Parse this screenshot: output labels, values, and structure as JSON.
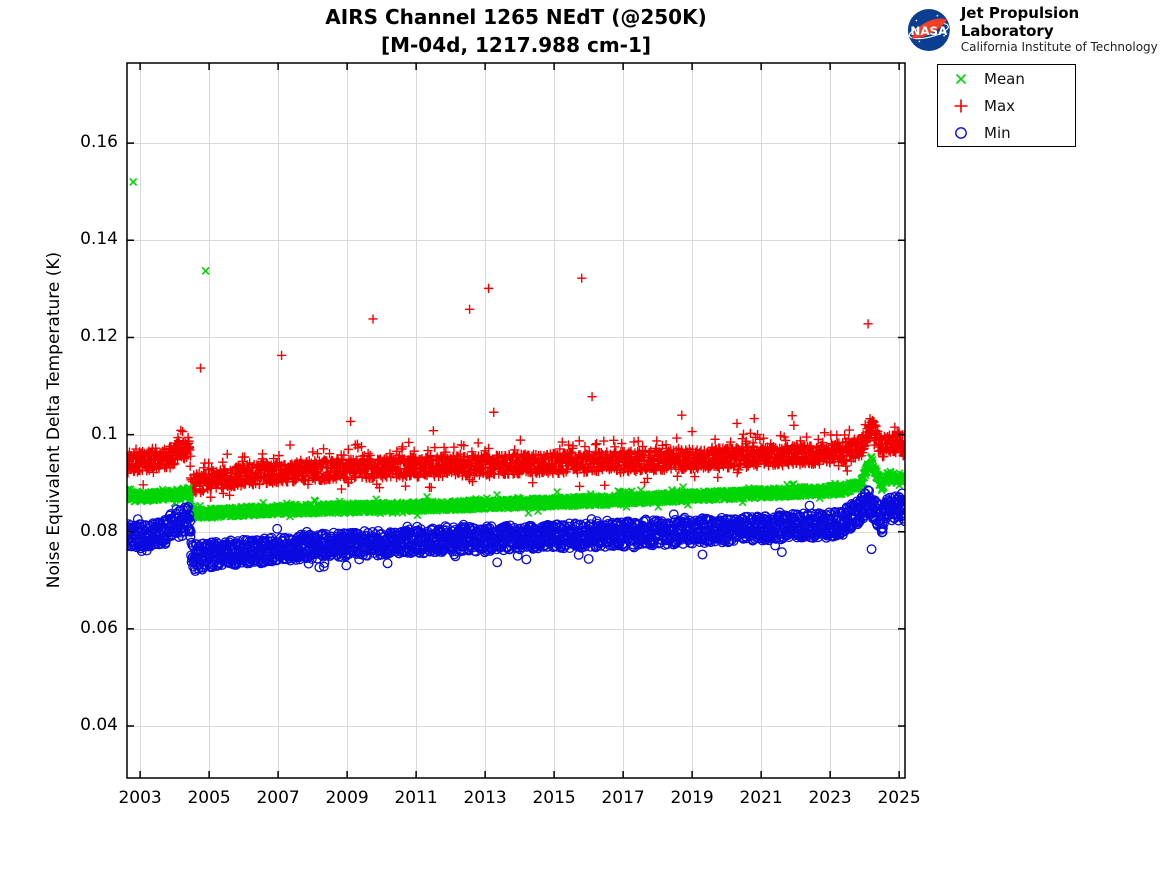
{
  "header": {
    "logo": {
      "nasa_text": "NASA",
      "org_name": "Jet Propulsion Laboratory",
      "org_sub": "California Institute of Technology"
    }
  },
  "legend": {
    "items": [
      {
        "label": "Mean",
        "series": "Mean"
      },
      {
        "label": "Max",
        "series": "Max"
      },
      {
        "label": "Min",
        "series": "Min"
      }
    ]
  },
  "chart_data": {
    "type": "scatter",
    "title": "AIRS Channel 1265 NEdT (@250K)",
    "subtitle": "[M-04d, 1217.988 cm-1]",
    "xlabel": "",
    "ylabel": "Noise Equivalent Delta Temperature (K)",
    "xlim": [
      2002.62,
      2025.17
    ],
    "ylim": [
      0.0293,
      0.1765
    ],
    "xticks": [
      2003,
      2005,
      2007,
      2009,
      2011,
      2013,
      2015,
      2017,
      2019,
      2021,
      2023,
      2025
    ],
    "ytick_values": [
      0.04,
      0.06,
      0.08,
      0.1,
      0.12,
      0.14,
      0.16
    ],
    "ytick_labels": [
      "0.04",
      "0.06",
      "0.08",
      "0.1",
      "0.12",
      "0.14",
      "0.16"
    ],
    "grid": true,
    "grid_color": "#d9d9d9",
    "axis_color": "#000000",
    "legend_position": "outside-top-right",
    "data_start": 2002.63,
    "data_end": 2025.17,
    "points_per_series": 2600,
    "series": [
      {
        "name": "Max",
        "marker": "+",
        "color": "#f20000",
        "marker_size": 4.6,
        "line_width": 1.4,
        "noise": 0.0021,
        "whisker_prob": 0.1,
        "whisker_amp": 0.0038,
        "whisker_up_bias": 0.75,
        "trend": [
          [
            2002.62,
            0.0941
          ],
          [
            2003.2,
            0.0945
          ],
          [
            2003.7,
            0.0951
          ],
          [
            2004.1,
            0.0963
          ],
          [
            2004.42,
            0.0976
          ],
          [
            2004.5,
            0.0897
          ],
          [
            2005.2,
            0.0906
          ],
          [
            2006.0,
            0.0916
          ],
          [
            2008.0,
            0.0926
          ],
          [
            2011.0,
            0.0933
          ],
          [
            2014.0,
            0.0939
          ],
          [
            2017.0,
            0.0944
          ],
          [
            2020.0,
            0.0952
          ],
          [
            2022.0,
            0.0957
          ],
          [
            2023.3,
            0.0962
          ],
          [
            2023.9,
            0.0974
          ],
          [
            2024.05,
            0.0995
          ],
          [
            2024.2,
            0.1022
          ],
          [
            2024.35,
            0.0993
          ],
          [
            2024.5,
            0.0972
          ],
          [
            2024.7,
            0.0982
          ],
          [
            2025.0,
            0.0984
          ],
          [
            2025.17,
            0.0974
          ]
        ],
        "outliers": [
          [
            2004.75,
            0.1137
          ],
          [
            2007.1,
            0.1163
          ],
          [
            2009.1,
            0.1027
          ],
          [
            2009.75,
            0.1238
          ],
          [
            2011.5,
            0.1008
          ],
          [
            2012.55,
            0.1258
          ],
          [
            2013.1,
            0.1301
          ],
          [
            2013.25,
            0.1046
          ],
          [
            2015.8,
            0.1322
          ],
          [
            2016.1,
            0.1078
          ],
          [
            2018.7,
            0.104
          ],
          [
            2020.3,
            0.1023
          ],
          [
            2020.8,
            0.1033
          ],
          [
            2021.9,
            0.1039
          ],
          [
            2021.95,
            0.1019
          ],
          [
            2024.1,
            0.1228
          ]
        ]
      },
      {
        "name": "Mean",
        "marker": "x",
        "color": "#00d506",
        "marker_size": 3.4,
        "line_width": 1.6,
        "noise": 0.001,
        "whisker_prob": 0.05,
        "whisker_amp": 0.0014,
        "whisker_up_bias": 0.6,
        "trend": [
          [
            2002.62,
            0.0871
          ],
          [
            2003.5,
            0.0873
          ],
          [
            2004.1,
            0.0878
          ],
          [
            2004.42,
            0.0881
          ],
          [
            2004.5,
            0.0836
          ],
          [
            2006.0,
            0.0842
          ],
          [
            2008.0,
            0.0847
          ],
          [
            2011.0,
            0.0852
          ],
          [
            2014.0,
            0.0858
          ],
          [
            2017.0,
            0.0866
          ],
          [
            2020.0,
            0.0876
          ],
          [
            2022.0,
            0.0882
          ],
          [
            2023.3,
            0.0886
          ],
          [
            2023.9,
            0.0897
          ],
          [
            2024.05,
            0.0925
          ],
          [
            2024.2,
            0.0946
          ],
          [
            2024.35,
            0.0915
          ],
          [
            2024.5,
            0.0893
          ],
          [
            2024.7,
            0.0915
          ],
          [
            2024.9,
            0.0911
          ],
          [
            2025.17,
            0.0912
          ]
        ],
        "outliers": [
          [
            2002.8,
            0.152
          ],
          [
            2004.9,
            0.1337
          ]
        ]
      },
      {
        "name": "Min",
        "marker": "o",
        "color": "#0a0ae0",
        "marker_size": 4.3,
        "line_width": 1.3,
        "noise": 0.0026,
        "whisker_prob": 0.06,
        "whisker_amp": 0.0022,
        "whisker_up_bias": 0.35,
        "trend": [
          [
            2002.62,
            0.0793
          ],
          [
            2003.3,
            0.079
          ],
          [
            2003.7,
            0.0801
          ],
          [
            2004.05,
            0.0822
          ],
          [
            2004.42,
            0.0827
          ],
          [
            2004.5,
            0.0748
          ],
          [
            2005.2,
            0.0753
          ],
          [
            2006.0,
            0.0759
          ],
          [
            2008.0,
            0.077
          ],
          [
            2011.0,
            0.0781
          ],
          [
            2014.0,
            0.0788
          ],
          [
            2017.0,
            0.0795
          ],
          [
            2020.0,
            0.0804
          ],
          [
            2022.0,
            0.0811
          ],
          [
            2023.3,
            0.0816
          ],
          [
            2023.9,
            0.0846
          ],
          [
            2024.1,
            0.0862
          ],
          [
            2024.3,
            0.0848
          ],
          [
            2024.5,
            0.0822
          ],
          [
            2024.7,
            0.0846
          ],
          [
            2024.9,
            0.0851
          ],
          [
            2025.17,
            0.0842
          ]
        ],
        "outliers": [
          [
            2004.6,
            0.0719
          ],
          [
            2004.8,
            0.0722
          ],
          [
            2005.05,
            0.0727
          ],
          [
            2006.5,
            0.0735
          ],
          [
            2009.35,
            0.0743
          ],
          [
            2013.35,
            0.0737
          ],
          [
            2016.0,
            0.0744
          ],
          [
            2019.3,
            0.0753
          ],
          [
            2021.6,
            0.0758
          ],
          [
            2024.2,
            0.0764
          ]
        ]
      }
    ]
  }
}
